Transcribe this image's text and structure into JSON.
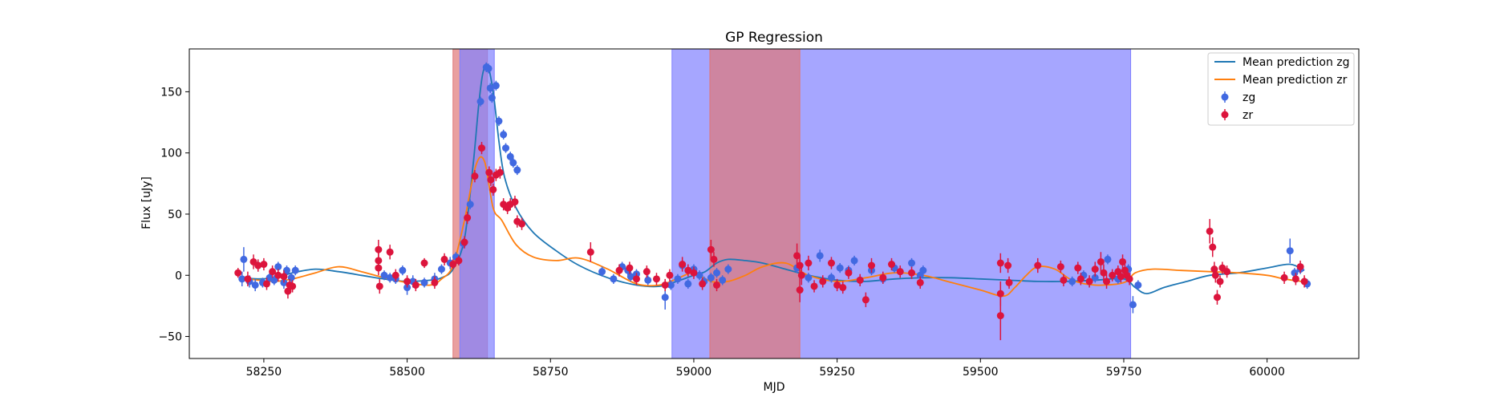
{
  "chart_data": {
    "type": "scatter",
    "title": "GP Regression",
    "xlabel": "MJD",
    "ylabel": "Flux [uJy]",
    "xlim": [
      58120,
      60160
    ],
    "ylim": [
      -68,
      185
    ],
    "xticks": [
      58250,
      58500,
      58750,
      59000,
      59250,
      59500,
      59750,
      60000
    ],
    "yticks": [
      -50,
      0,
      50,
      100,
      150
    ],
    "grid": false,
    "legend_position": "top-right",
    "shaded_regions": [
      {
        "band": "zr",
        "color": "#e07878",
        "range": [
          58580,
          58640
        ]
      },
      {
        "band": "zg",
        "color": "#8080ff",
        "range": [
          58592,
          58652
        ]
      },
      {
        "band": "zg",
        "color": "#8080ff",
        "range": [
          58962,
          59762
        ]
      },
      {
        "band": "zr",
        "color": "#e07878",
        "range": [
          59028,
          59185
        ]
      }
    ],
    "series": [
      {
        "name": "Mean prediction zg",
        "kind": "line",
        "color": "#1f77b4",
        "x": [
          58210,
          58240,
          58270,
          58300,
          58340,
          58380,
          58420,
          58460,
          58500,
          58540,
          58560,
          58580,
          58600,
          58615,
          58625,
          58632,
          58640,
          58650,
          58660,
          58670,
          58690,
          58720,
          58760,
          58800,
          58850,
          58900,
          58940,
          58970,
          59000,
          59020,
          59040,
          59060,
          59090,
          59120,
          59160,
          59200,
          59250,
          59300,
          59350,
          59400,
          59450,
          59500,
          59550,
          59600,
          59650,
          59700,
          59750,
          59770,
          59790,
          59820,
          59860,
          59900,
          59950,
          60000,
          60040,
          60065
        ],
        "y": [
          -2,
          -3,
          -2,
          2,
          5,
          3,
          0,
          -3,
          -5,
          -4,
          -2,
          5,
          30,
          90,
          140,
          165,
          172,
          150,
          110,
          80,
          55,
          35,
          20,
          8,
          -2,
          -8,
          -9,
          -5,
          0,
          3,
          10,
          13,
          12,
          10,
          5,
          0,
          -4,
          -5,
          -3,
          -2,
          -2,
          -3,
          -4,
          -5,
          -5,
          -4,
          -3,
          -10,
          -15,
          -10,
          -5,
          0,
          2,
          6,
          9,
          4
        ]
      },
      {
        "name": "Mean prediction zr",
        "kind": "line",
        "color": "#ff7f0e",
        "x": [
          58210,
          58240,
          58270,
          58300,
          58340,
          58380,
          58420,
          58460,
          58500,
          58540,
          58560,
          58580,
          58600,
          58620,
          58635,
          58650,
          58665,
          58690,
          58720,
          58760,
          58800,
          58850,
          58900,
          58940,
          58970,
          59000,
          59030,
          59060,
          59090,
          59120,
          59160,
          59200,
          59250,
          59300,
          59350,
          59400,
          59450,
          59500,
          59540,
          59560,
          59580,
          59600,
          59630,
          59660,
          59700,
          59750,
          59770,
          59800,
          59850,
          59900,
          59950,
          60000,
          60030,
          60060
        ],
        "y": [
          -2,
          -4,
          -5,
          -3,
          2,
          7,
          3,
          -2,
          -6,
          -8,
          -3,
          8,
          45,
          90,
          93,
          55,
          45,
          25,
          15,
          12,
          14,
          5,
          -7,
          -8,
          -3,
          2,
          -5,
          -5,
          0,
          7,
          10,
          0,
          -5,
          -2,
          2,
          0,
          -6,
          -12,
          -17,
          -10,
          0,
          7,
          5,
          -4,
          -8,
          -6,
          2,
          5,
          4,
          3,
          2,
          0,
          -3,
          -5
        ]
      },
      {
        "name": "zg",
        "kind": "errorbar",
        "color": "#4169e1",
        "points": [
          [
            58215,
            13,
            10
          ],
          [
            58212,
            -3,
            6
          ],
          [
            58225,
            -5,
            5
          ],
          [
            58235,
            -8,
            5
          ],
          [
            58240,
            8,
            5
          ],
          [
            58248,
            -6,
            4
          ],
          [
            58260,
            -2,
            4
          ],
          [
            58268,
            -4,
            4
          ],
          [
            58275,
            7,
            4
          ],
          [
            58285,
            -6,
            5
          ],
          [
            58290,
            4,
            4
          ],
          [
            58298,
            -2,
            4
          ],
          [
            58305,
            4,
            4
          ],
          [
            58460,
            0,
            4
          ],
          [
            58470,
            -2,
            4
          ],
          [
            58480,
            -3,
            4
          ],
          [
            58492,
            4,
            4
          ],
          [
            58500,
            -10,
            6
          ],
          [
            58510,
            -5,
            5
          ],
          [
            58530,
            -6,
            4
          ],
          [
            58548,
            -3,
            5
          ],
          [
            58560,
            5,
            4
          ],
          [
            58575,
            10,
            5
          ],
          [
            58585,
            15,
            4
          ],
          [
            58598,
            26,
            4
          ],
          [
            58610,
            58,
            4
          ],
          [
            58628,
            142,
            4
          ],
          [
            58638,
            170,
            4
          ],
          [
            58642,
            169,
            4
          ],
          [
            58645,
            153,
            4
          ],
          [
            58648,
            145,
            4
          ],
          [
            58655,
            155,
            4
          ],
          [
            58660,
            126,
            4
          ],
          [
            58668,
            115,
            4
          ],
          [
            58672,
            104,
            4
          ],
          [
            58680,
            97,
            4
          ],
          [
            58685,
            92,
            4
          ],
          [
            58692,
            86,
            4
          ],
          [
            58840,
            3,
            4
          ],
          [
            58860,
            -3,
            4
          ],
          [
            58875,
            7,
            4
          ],
          [
            58885,
            4,
            4
          ],
          [
            58890,
            -1,
            4
          ],
          [
            58900,
            1,
            4
          ],
          [
            58920,
            -4,
            4
          ],
          [
            58950,
            -18,
            10
          ],
          [
            58960,
            -8,
            4
          ],
          [
            58972,
            -3,
            4
          ],
          [
            58980,
            8,
            4
          ],
          [
            58990,
            -7,
            4
          ],
          [
            59000,
            5,
            4
          ],
          [
            59010,
            0,
            4
          ],
          [
            59018,
            -5,
            4
          ],
          [
            59030,
            -2,
            4
          ],
          [
            59040,
            2,
            4
          ],
          [
            59050,
            -4,
            4
          ],
          [
            59060,
            5,
            4
          ],
          [
            59180,
            6,
            4
          ],
          [
            59200,
            -2,
            4
          ],
          [
            59220,
            16,
            5
          ],
          [
            59240,
            -2,
            4
          ],
          [
            59255,
            6,
            4
          ],
          [
            59270,
            4,
            4
          ],
          [
            59280,
            12,
            4
          ],
          [
            59290,
            -4,
            4
          ],
          [
            59310,
            4,
            4
          ],
          [
            59330,
            -3,
            4
          ],
          [
            59350,
            6,
            4
          ],
          [
            59380,
            10,
            4
          ],
          [
            59395,
            0,
            4
          ],
          [
            59400,
            4,
            4
          ],
          [
            59660,
            -5,
            4
          ],
          [
            59680,
            0,
            4
          ],
          [
            59700,
            -2,
            4
          ],
          [
            59722,
            13,
            4
          ],
          [
            59740,
            -3,
            4
          ],
          [
            59758,
            5,
            4
          ],
          [
            59766,
            -24,
            7
          ],
          [
            59775,
            -8,
            4
          ],
          [
            60040,
            20,
            10
          ],
          [
            60048,
            2,
            4
          ],
          [
            60058,
            5,
            4
          ],
          [
            60070,
            -7,
            4
          ]
        ]
      },
      {
        "name": "zr",
        "kind": "errorbar",
        "color": "#dc143c",
        "points": [
          [
            58205,
            2,
            4
          ],
          [
            58222,
            -3,
            6
          ],
          [
            58232,
            11,
            6
          ],
          [
            58240,
            8,
            5
          ],
          [
            58250,
            9,
            5
          ],
          [
            58255,
            -7,
            5
          ],
          [
            58265,
            3,
            5
          ],
          [
            58275,
            0,
            5
          ],
          [
            58285,
            -1,
            5
          ],
          [
            58292,
            -13,
            6
          ],
          [
            58295,
            -8,
            5
          ],
          [
            58300,
            -9,
            5
          ],
          [
            58450,
            21,
            8
          ],
          [
            58450,
            12,
            7
          ],
          [
            58450,
            6,
            6
          ],
          [
            58452,
            -9,
            6
          ],
          [
            58470,
            19,
            6
          ],
          [
            58480,
            0,
            5
          ],
          [
            58500,
            -5,
            5
          ],
          [
            58515,
            -8,
            5
          ],
          [
            58530,
            10,
            4
          ],
          [
            58548,
            -6,
            5
          ],
          [
            58565,
            13,
            5
          ],
          [
            58580,
            9,
            4
          ],
          [
            58590,
            12,
            4
          ],
          [
            58600,
            27,
            5
          ],
          [
            58605,
            47,
            5
          ],
          [
            58618,
            81,
            5
          ],
          [
            58630,
            104,
            5
          ],
          [
            58643,
            84,
            5
          ],
          [
            58646,
            78,
            5
          ],
          [
            58650,
            70,
            5
          ],
          [
            58655,
            82,
            5
          ],
          [
            58662,
            84,
            5
          ],
          [
            58668,
            58,
            5
          ],
          [
            58675,
            55,
            5
          ],
          [
            58680,
            58,
            5
          ],
          [
            58688,
            60,
            5
          ],
          [
            58692,
            44,
            5
          ],
          [
            58700,
            42,
            5
          ],
          [
            58820,
            19,
            8
          ],
          [
            58870,
            4,
            5
          ],
          [
            58888,
            6,
            5
          ],
          [
            58900,
            -3,
            5
          ],
          [
            58918,
            3,
            5
          ],
          [
            58935,
            -3,
            5
          ],
          [
            58950,
            -8,
            5
          ],
          [
            58958,
            0,
            5
          ],
          [
            58980,
            9,
            6
          ],
          [
            58990,
            4,
            5
          ],
          [
            59000,
            2,
            5
          ],
          [
            59015,
            -7,
            5
          ],
          [
            59030,
            21,
            8
          ],
          [
            59035,
            13,
            6
          ],
          [
            59040,
            -8,
            5
          ],
          [
            59180,
            16,
            10
          ],
          [
            59185,
            8,
            8
          ],
          [
            59185,
            -12,
            10
          ],
          [
            59188,
            0,
            8
          ],
          [
            59200,
            10,
            6
          ],
          [
            59210,
            -9,
            5
          ],
          [
            59225,
            -5,
            5
          ],
          [
            59240,
            10,
            5
          ],
          [
            59250,
            -8,
            5
          ],
          [
            59260,
            -10,
            5
          ],
          [
            59270,
            2,
            5
          ],
          [
            59290,
            -4,
            5
          ],
          [
            59300,
            -20,
            6
          ],
          [
            59310,
            8,
            6
          ],
          [
            59330,
            -2,
            5
          ],
          [
            59345,
            9,
            5
          ],
          [
            59360,
            3,
            5
          ],
          [
            59380,
            2,
            5
          ],
          [
            59395,
            -6,
            5
          ],
          [
            59535,
            10,
            8
          ],
          [
            59535,
            -15,
            10
          ],
          [
            59535,
            -33,
            20
          ],
          [
            59548,
            8,
            6
          ],
          [
            59550,
            -6,
            5
          ],
          [
            59600,
            8,
            6
          ],
          [
            59640,
            7,
            5
          ],
          [
            59645,
            -4,
            5
          ],
          [
            59670,
            6,
            5
          ],
          [
            59675,
            -3,
            5
          ],
          [
            59690,
            -5,
            5
          ],
          [
            59700,
            5,
            6
          ],
          [
            59710,
            11,
            8
          ],
          [
            59715,
            2,
            7
          ],
          [
            59720,
            -5,
            6
          ],
          [
            59730,
            0,
            5
          ],
          [
            59740,
            3,
            5
          ],
          [
            59745,
            -1,
            5
          ],
          [
            59748,
            11,
            6
          ],
          [
            59752,
            4,
            5
          ],
          [
            59755,
            0,
            5
          ],
          [
            59760,
            -3,
            5
          ],
          [
            59900,
            36,
            10
          ],
          [
            59905,
            23,
            8
          ],
          [
            59908,
            5,
            6
          ],
          [
            59910,
            0,
            6
          ],
          [
            59913,
            -18,
            6
          ],
          [
            59918,
            -5,
            5
          ],
          [
            59922,
            6,
            5
          ],
          [
            59930,
            3,
            5
          ],
          [
            60030,
            -2,
            5
          ],
          [
            60050,
            -3,
            5
          ],
          [
            60058,
            7,
            5
          ],
          [
            60065,
            -5,
            5
          ]
        ]
      }
    ]
  }
}
